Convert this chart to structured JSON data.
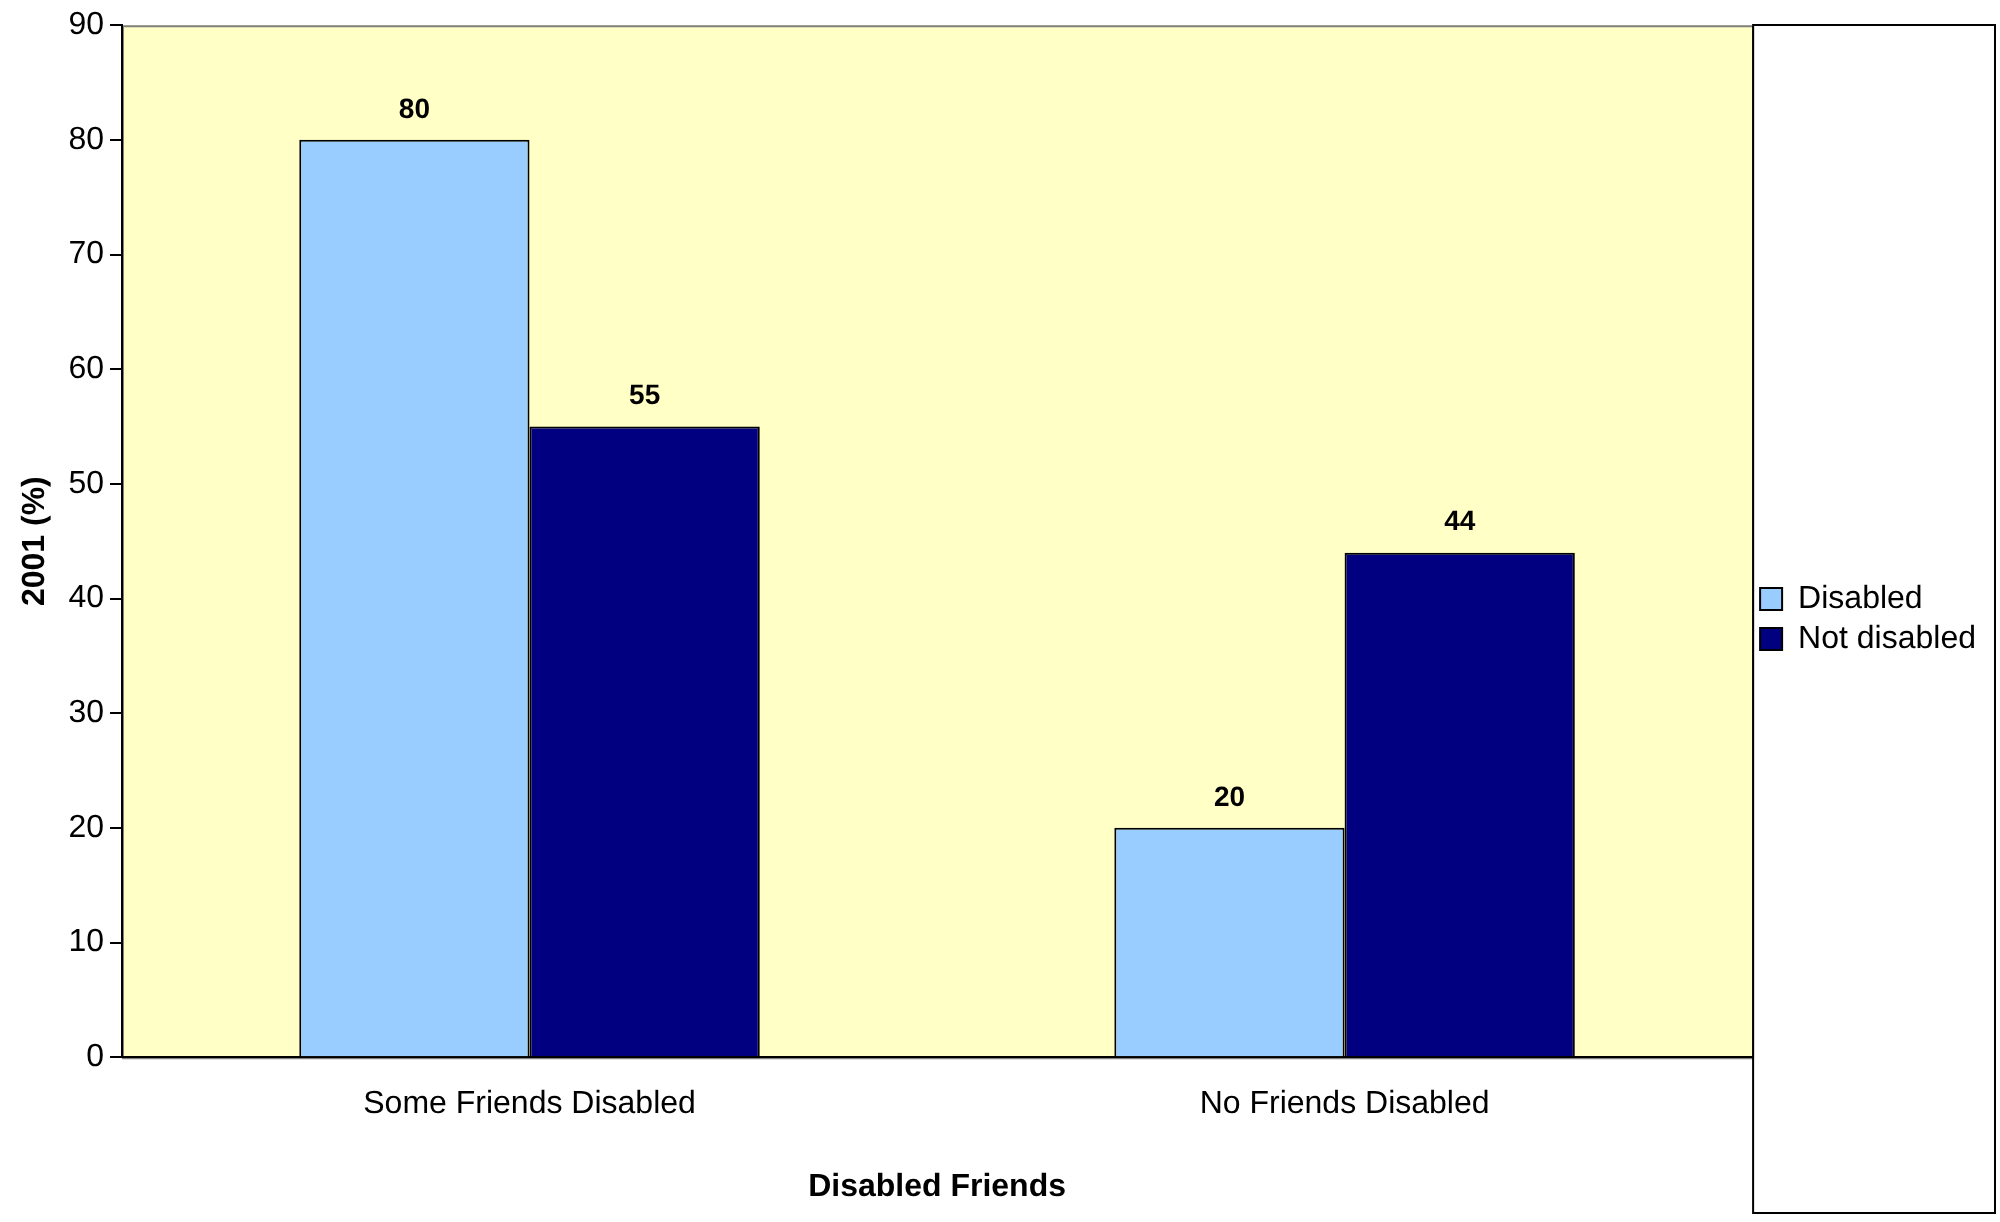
{
  "chart_data": {
    "type": "bar",
    "xlabel": "Disabled Friends",
    "ylabel": "2001 (%)",
    "categories": [
      "Some Friends Disabled",
      "No Friends Disabled"
    ],
    "series": [
      {
        "name": "Disabled",
        "color": "#99ccff",
        "values": [
          80,
          20
        ]
      },
      {
        "name": "Not disabled",
        "color": "#000080",
        "values": [
          55,
          44
        ]
      }
    ],
    "ylim": [
      0,
      90
    ],
    "yticks": [
      0,
      10,
      20,
      30,
      40,
      50,
      60,
      70,
      80,
      90
    ],
    "grid": false,
    "legend": "right",
    "data_labels": true
  }
}
